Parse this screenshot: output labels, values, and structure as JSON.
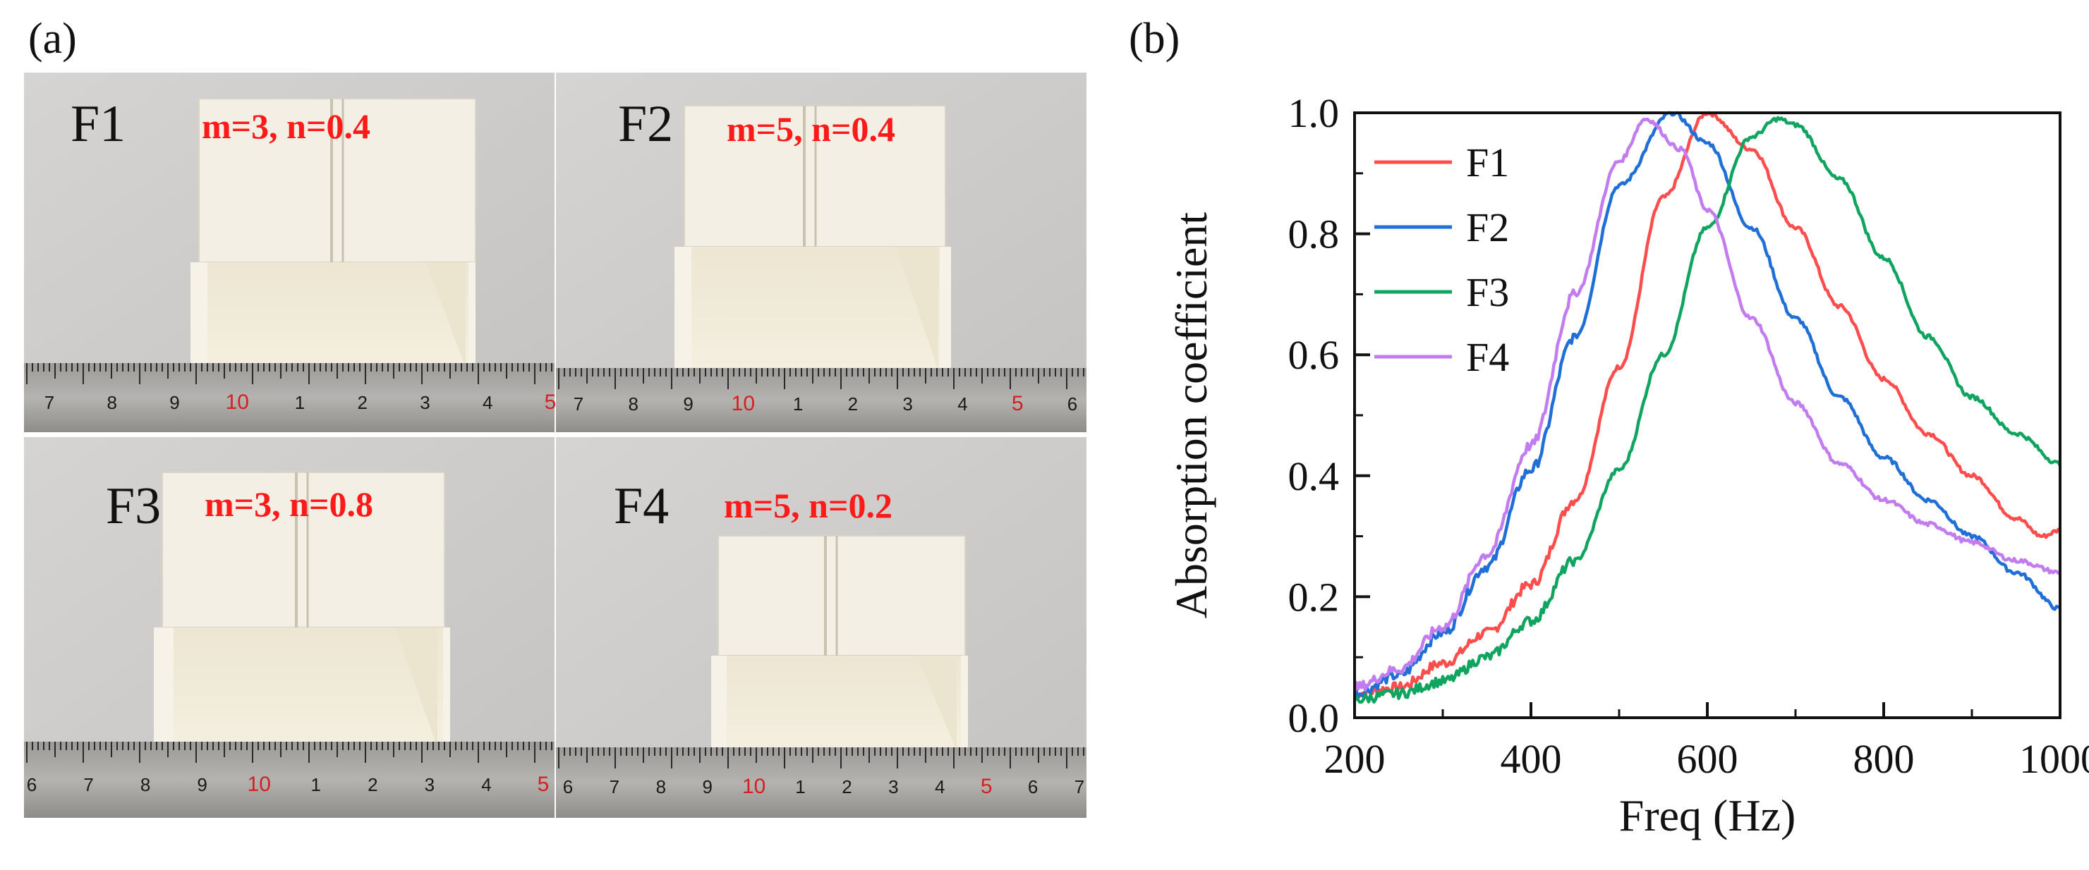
{
  "panels": {
    "a": "(a)",
    "b": "(b)"
  },
  "photos": [
    {
      "label": "F1",
      "params": "m=3, n=0.4"
    },
    {
      "label": "F2",
      "params": "m=5, n=0.4"
    },
    {
      "label": "F3",
      "params": "m=3, n=0.8"
    },
    {
      "label": "F4",
      "params": "m=5, n=0.2"
    }
  ],
  "rulers": [
    {
      "numbers": [
        "7",
        "8",
        "9",
        "10",
        "1",
        "2",
        "3",
        "4",
        "5"
      ],
      "red": [
        "10",
        "5"
      ]
    },
    {
      "numbers": [
        "7",
        "8",
        "9",
        "10",
        "1",
        "2",
        "3",
        "4",
        "5",
        "6"
      ],
      "red": [
        "10",
        "5"
      ]
    },
    {
      "numbers": [
        "6",
        "7",
        "8",
        "9",
        "10",
        "1",
        "2",
        "3",
        "4",
        "5"
      ],
      "red": [
        "10",
        "5"
      ]
    },
    {
      "numbers": [
        "6",
        "7",
        "8",
        "9",
        "10",
        "1",
        "2",
        "3",
        "4",
        "5",
        "6",
        "7"
      ],
      "red": [
        "10",
        "5"
      ]
    }
  ],
  "colors": {
    "F1": "#ff4d4d",
    "F2": "#1f6fd6",
    "F3": "#10a460",
    "F4": "#c37cf0"
  },
  "chart_data": {
    "type": "line",
    "title": "",
    "xlabel": "Freq (Hz)",
    "ylabel": "Absorption coefficient",
    "xlim": [
      200,
      1000
    ],
    "ylim": [
      0,
      1.0
    ],
    "xticks": [
      "200",
      "400",
      "600",
      "800",
      "1000"
    ],
    "yticks": [
      "0.0",
      "0.2",
      "0.4",
      "0.6",
      "0.8",
      "1.0"
    ],
    "legend_position": "top-left",
    "series": [
      {
        "name": "F1",
        "x": [
          200,
          250,
          300,
          350,
          400,
          450,
          500,
          550,
          600,
          650,
          700,
          750,
          800,
          850,
          900,
          950,
          980,
          1000
        ],
        "y": [
          0.04,
          0.05,
          0.09,
          0.14,
          0.22,
          0.36,
          0.58,
          0.86,
          1.0,
          0.94,
          0.81,
          0.68,
          0.56,
          0.47,
          0.4,
          0.33,
          0.3,
          0.31
        ]
      },
      {
        "name": "F2",
        "x": [
          200,
          250,
          300,
          350,
          400,
          450,
          500,
          560,
          600,
          650,
          700,
          750,
          800,
          850,
          900,
          950,
          1000
        ],
        "y": [
          0.04,
          0.07,
          0.14,
          0.25,
          0.41,
          0.63,
          0.88,
          1.0,
          0.95,
          0.81,
          0.66,
          0.53,
          0.43,
          0.36,
          0.3,
          0.24,
          0.18
        ]
      },
      {
        "name": "F3",
        "x": [
          200,
          250,
          300,
          350,
          400,
          450,
          500,
          550,
          600,
          650,
          680,
          700,
          750,
          800,
          850,
          900,
          950,
          1000
        ],
        "y": [
          0.03,
          0.04,
          0.06,
          0.1,
          0.16,
          0.26,
          0.41,
          0.6,
          0.81,
          0.96,
          0.99,
          0.98,
          0.89,
          0.76,
          0.63,
          0.53,
          0.47,
          0.42
        ]
      },
      {
        "name": "F4",
        "x": [
          200,
          250,
          300,
          350,
          400,
          450,
          500,
          530,
          570,
          600,
          650,
          700,
          750,
          800,
          850,
          900,
          950,
          1000
        ],
        "y": [
          0.05,
          0.08,
          0.15,
          0.27,
          0.45,
          0.7,
          0.92,
          0.99,
          0.94,
          0.84,
          0.66,
          0.52,
          0.42,
          0.36,
          0.32,
          0.29,
          0.26,
          0.24
        ]
      }
    ]
  }
}
